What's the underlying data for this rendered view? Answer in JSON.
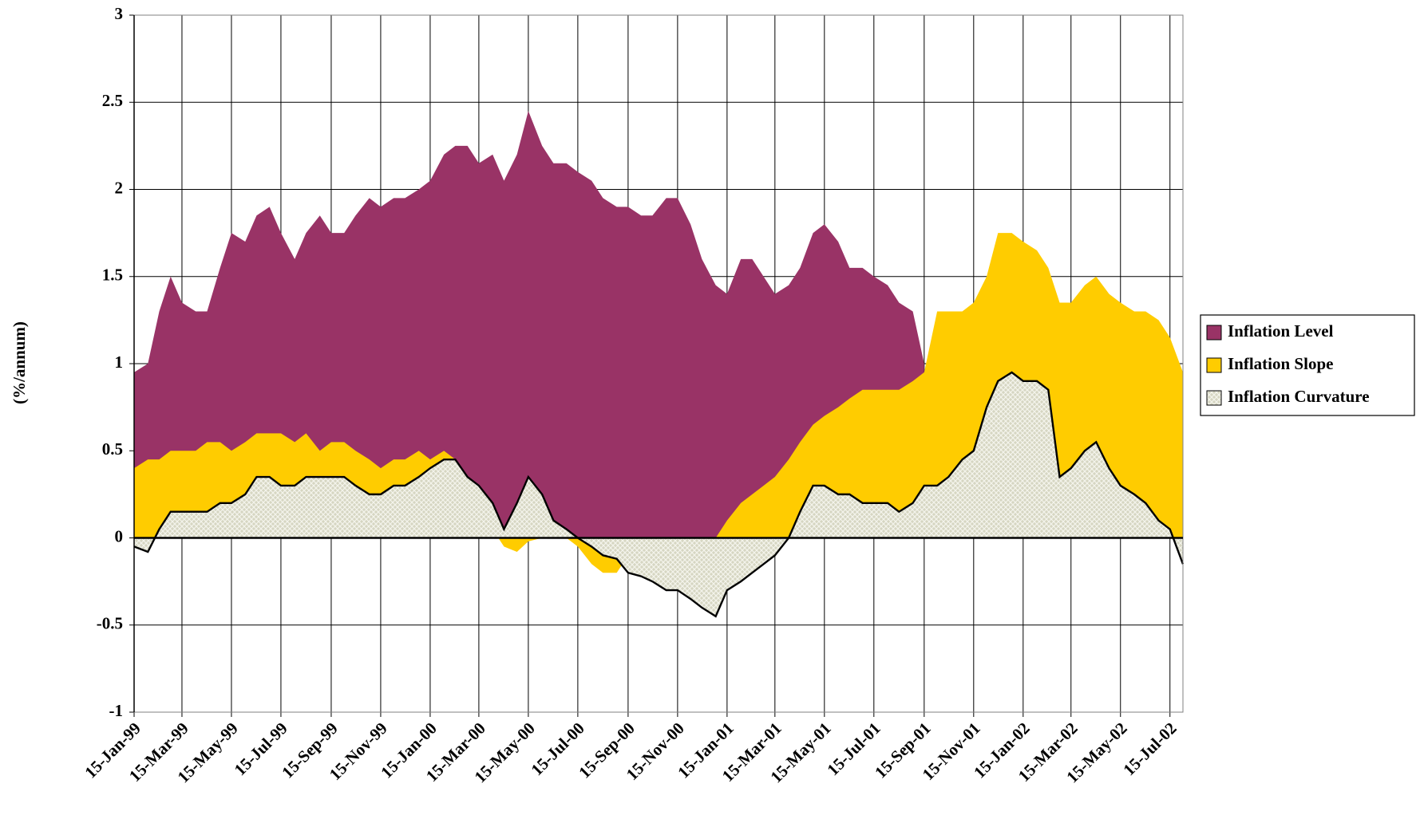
{
  "chart_data": {
    "type": "area",
    "y_label": "(%/annum)",
    "x": [
      "15-Jan-99",
      "1-Feb-99",
      "15-Feb-99",
      "1-Mar-99",
      "15-Mar-99",
      "1-Apr-99",
      "15-Apr-99",
      "1-May-99",
      "15-May-99",
      "1-Jun-99",
      "15-Jun-99",
      "1-Jul-99",
      "15-Jul-99",
      "1-Aug-99",
      "15-Aug-99",
      "1-Sep-99",
      "15-Sep-99",
      "1-Oct-99",
      "15-Oct-99",
      "1-Nov-99",
      "15-Nov-99",
      "1-Dec-99",
      "15-Dec-99",
      "1-Jan-00",
      "15-Jan-00",
      "1-Feb-00",
      "15-Feb-00",
      "1-Mar-00",
      "15-Mar-00",
      "1-Apr-00",
      "15-Apr-00",
      "1-May-00",
      "15-May-00",
      "1-Jun-00",
      "15-Jun-00",
      "1-Jul-00",
      "15-Jul-00",
      "1-Aug-00",
      "15-Aug-00",
      "1-Sep-00",
      "15-Sep-00",
      "1-Oct-00",
      "15-Oct-00",
      "1-Nov-00",
      "15-Nov-00",
      "1-Dec-00",
      "15-Dec-00",
      "1-Jan-01",
      "15-Jan-01",
      "1-Feb-01",
      "15-Feb-01",
      "1-Mar-01",
      "15-Mar-01",
      "1-Apr-01",
      "15-Apr-01",
      "1-May-01",
      "15-May-01",
      "1-Jun-01",
      "15-Jun-01",
      "1-Jul-01",
      "15-Jul-01",
      "1-Aug-01",
      "15-Aug-01",
      "1-Sep-01",
      "15-Sep-01",
      "1-Oct-01",
      "15-Oct-01",
      "1-Nov-01",
      "15-Nov-01",
      "1-Dec-01",
      "15-Dec-01",
      "1-Jan-02",
      "15-Jan-02",
      "1-Feb-02",
      "15-Feb-02",
      "1-Mar-02",
      "15-Mar-02",
      "1-Apr-02",
      "15-Apr-02",
      "1-May-02",
      "15-May-02",
      "1-Jun-02",
      "15-Jun-02",
      "1-Jul-02",
      "15-Jul-02",
      "31-Jul-02"
    ],
    "series": [
      {
        "name": "Inflation Level",
        "color": "#993366",
        "values": [
          0.95,
          1.0,
          1.3,
          1.5,
          1.35,
          1.3,
          1.3,
          1.55,
          1.75,
          1.7,
          1.85,
          1.9,
          1.75,
          1.6,
          1.75,
          1.85,
          1.75,
          1.75,
          1.85,
          1.95,
          1.9,
          1.95,
          1.95,
          2.0,
          2.05,
          2.2,
          2.25,
          2.25,
          2.15,
          2.2,
          2.05,
          2.2,
          2.45,
          2.25,
          2.15,
          2.15,
          2.1,
          2.05,
          1.95,
          1.9,
          1.9,
          1.85,
          1.85,
          1.95,
          1.95,
          1.8,
          1.6,
          1.45,
          1.4,
          1.6,
          1.6,
          1.5,
          1.4,
          1.45,
          1.55,
          1.75,
          1.8,
          1.7,
          1.55,
          1.55,
          1.5,
          1.45,
          1.35,
          1.3,
          1.0,
          null,
          null,
          null,
          null,
          null,
          null,
          null,
          null,
          null,
          null,
          null,
          null,
          null,
          null,
          null,
          null,
          null,
          null,
          null,
          null,
          null
        ]
      },
      {
        "name": "Inflation Slope",
        "color": "#ffcc00",
        "values": [
          0.4,
          0.45,
          0.45,
          0.5,
          0.5,
          0.5,
          0.55,
          0.55,
          0.5,
          0.55,
          0.6,
          0.6,
          0.6,
          0.55,
          0.6,
          0.5,
          0.55,
          0.55,
          0.5,
          0.45,
          0.4,
          0.45,
          0.45,
          0.5,
          0.45,
          0.5,
          0.45,
          0.3,
          0.15,
          0.05,
          -0.05,
          -0.08,
          -0.02,
          0,
          0,
          0,
          -0.05,
          -0.15,
          -0.2,
          -0.2,
          -0.1,
          -0.1,
          -0.15,
          -0.2,
          -0.2,
          -0.1,
          -0.05,
          0,
          0.1,
          0.2,
          0.25,
          0.3,
          0.35,
          0.45,
          0.55,
          0.65,
          0.7,
          0.75,
          0.8,
          0.85,
          0.85,
          0.85,
          0.85,
          0.9,
          0.95,
          1.3,
          1.3,
          1.3,
          1.35,
          1.5,
          1.75,
          1.75,
          1.7,
          1.65,
          1.55,
          1.35,
          1.35,
          1.45,
          1.5,
          1.4,
          1.35,
          1.3,
          1.3,
          1.25,
          1.15,
          0.95
        ]
      },
      {
        "name": "Inflation Curvature",
        "color": "#d6d6c2",
        "pattern": "hatch",
        "values": [
          -0.05,
          -0.08,
          0.05,
          0.15,
          0.15,
          0.15,
          0.15,
          0.2,
          0.2,
          0.25,
          0.35,
          0.35,
          0.3,
          0.3,
          0.35,
          0.35,
          0.35,
          0.35,
          0.3,
          0.25,
          0.25,
          0.3,
          0.3,
          0.35,
          0.4,
          0.45,
          0.45,
          0.35,
          0.3,
          0.2,
          0.05,
          0.2,
          0.35,
          0.25,
          0.1,
          0.05,
          0,
          -0.05,
          -0.1,
          -0.12,
          -0.2,
          -0.22,
          -0.25,
          -0.3,
          -0.3,
          -0.35,
          -0.4,
          -0.45,
          -0.3,
          -0.25,
          -0.2,
          -0.15,
          -0.1,
          0,
          0.15,
          0.3,
          0.3,
          0.25,
          0.25,
          0.2,
          0.2,
          0.2,
          0.15,
          0.2,
          0.3,
          0.3,
          0.35,
          0.45,
          0.5,
          0.75,
          0.9,
          0.95,
          0.9,
          0.9,
          0.85,
          0.35,
          0.4,
          0.5,
          0.55,
          0.4,
          0.3,
          0.25,
          0.2,
          0.1,
          0.05,
          -0.15
        ]
      }
    ],
    "xlim": [
      "15-Jan-99",
      "31-Jul-02"
    ],
    "xticks": [
      "15-Jan-99",
      "15-Mar-99",
      "15-May-99",
      "15-Jul-99",
      "15-Sep-99",
      "15-Nov-99",
      "15-Jan-00",
      "15-Mar-00",
      "15-May-00",
      "15-Jul-00",
      "15-Sep-00",
      "15-Nov-00",
      "15-Jan-01",
      "15-Mar-01",
      "15-May-01",
      "15-Jul-01",
      "15-Sep-01",
      "15-Nov-01",
      "15-Jan-02",
      "15-Mar-02",
      "15-May-02",
      "15-Jul-02"
    ],
    "ylim": [
      -1,
      3
    ],
    "yticks": [
      -1,
      -0.5,
      0,
      0.5,
      1,
      1.5,
      2,
      2.5,
      3
    ],
    "grid": true,
    "legend": "right"
  }
}
